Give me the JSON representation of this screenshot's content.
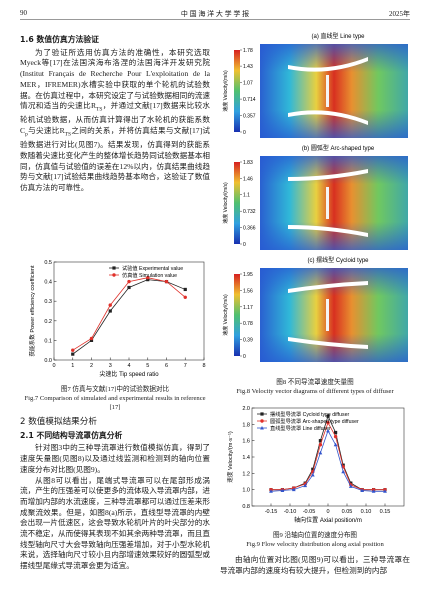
{
  "header": {
    "page": "90",
    "journal": "中 国 海 洋 大 学 学 报",
    "year": "2025年"
  },
  "section_1_6": {
    "heading": "1.6 数值仿真方法验证",
    "paragraphs": [
      [
        "为了验证所选用仿真方法的准确性，本研究选取Myeck等[17]在法国滨海布洛涅的法国海洋开发研究院(Institut Français de Recherche Pour L'exploitation de la MER，IFREMER)水槽实验中获取的单个轮机的试验数据。在仿真过程中，本研究设定了与试验数据相同的流速情况和适当的尖速比R",
        "TS",
        "，并通过文献[17]数据来比较水轮机试验数据，从而仿真计算得出了水轮机的获能系数C",
        "p",
        "与尖速比R",
        "TS",
        "之间的关系，并将仿真结果与文献[17]试验数据进行对比(见图7)。结果发现，仿真得到的获能系数随着尖速比变化产生的整体增长趋势同试验数据基本相同，仿真值与试验值的误差在12%以内，仿真结果曲线趋势与文献[17]试验结果曲线趋势基本吻合，这验证了数值仿真方法的可靠性。"
      ]
    ]
  },
  "section_2": {
    "heading": "2  数值模拟结果分析",
    "subheading": "2.1 不同结构导流罩仿真分析",
    "paragraphs": [
      [
        "针对图3中的三种导流罩进行数值模拟仿真，得到了速度矢量图(见图8)以及通过线监测和检测到的轴向位置速度分布对比图(见图9)。"
      ],
      [
        "从图8可以看出，尾端式导流罩可以在尾部形成涡流，产生的压强差可以使更多的流体吸入导流罩内部，进而增加内部的水流速度，三种导流罩都可以通过压差来形成聚流效果。但是，如图8(a)所示，直线型导流罩的内壁会出现一片低速区，这会导致水轮机叶片的叶尖部分的水流不稳定，从而使得其表现不如其余两种导流罩，而且直线型轴向尺寸大会导致轴向压强差增加，对于小型水轮机来说，选择轴向尺寸较小且内部增速效果较好的圆弧型或摆线型尾缘式导流罩会更为适宜。"
      ]
    ],
    "right_paragraph": [
      "由轴向位置对比图(见图9)可以看出，三种导流罩在导流罩内部的速度均有较大提升，但检测到的内部"
    ]
  },
  "figure8": {
    "colorbar_label": "速度 Velocity/(m/s)",
    "panels": [
      {
        "label": "(a) 直线型 Line type",
        "colorbar_ticks": [
          1.78,
          1.43,
          1.07,
          0.714,
          0.357,
          0
        ]
      },
      {
        "label": "(b) 圆弧型 Arc-shaped type",
        "colorbar_ticks": [
          1.83,
          1.46,
          1.1,
          0.732,
          0.366,
          0
        ]
      },
      {
        "label": "(c) 摆线型 Cycloid type",
        "colorbar_ticks": [
          1.95,
          1.56,
          1.17,
          0.78,
          0.39,
          0
        ]
      }
    ],
    "caption": "图8  不同导流罩速度矢量图",
    "caption_en": "Fig.8  Velocity vector diagrams of different types of diffuser"
  },
  "chart_data": [
    {
      "type": "line",
      "x_label": "尖速比 Tip speed ratio",
      "y_label": "获能系数 Power efficiency coefficient",
      "legend": "upper center",
      "series": [
        {
          "name": "试验值 Experimental value",
          "color": "#222222",
          "marker": "square",
          "x": [
            1,
            2,
            3,
            4,
            5,
            6,
            7
          ],
          "values": [
            0.03,
            0.1,
            0.25,
            0.37,
            0.41,
            0.4,
            0.36
          ]
        },
        {
          "name": "仿真值 Simulation value",
          "color": "#e0302a",
          "marker": "circle",
          "x": [
            1,
            2,
            3,
            4,
            5,
            6,
            7
          ],
          "values": [
            0.05,
            0.11,
            0.28,
            0.4,
            0.42,
            0.4,
            0.32
          ]
        }
      ],
      "xlim": [
        0,
        8
      ],
      "xticks": [
        0,
        1,
        2,
        3,
        4,
        5,
        6,
        7,
        8
      ],
      "ylim": [
        0,
        0.5
      ],
      "yticks": [
        {
          "value": 0,
          "label": "0.0"
        },
        0.1,
        0.2,
        0.3,
        0.4,
        0.5
      ],
      "caption": "图7  仿真与文献[17]中的试验数据对比",
      "caption_en": "Fig.7  Comparison of simulated and experimental results in reference [17]"
    },
    {
      "type": "line",
      "x_label": "轴向位置 Axial position/m",
      "y_label": "速度 Velocity/(m·s⁻¹)",
      "legend": "upper left",
      "series": [
        {
          "name": "摆线型导流罩 Cycloid type diffuser",
          "color": "#222222",
          "marker": "square",
          "x": [
            -0.15,
            -0.12,
            -0.09,
            -0.06,
            -0.04,
            -0.02,
            0,
            0.02,
            0.04,
            0.06,
            0.09,
            0.12,
            0.15
          ],
          "values": [
            1.0,
            1.0,
            1.02,
            1.08,
            1.25,
            1.6,
            1.9,
            1.7,
            1.3,
            1.08,
            1.0,
            1.0,
            1.0
          ]
        },
        {
          "name": "圆弧型导流罩 Arc-shaped type diffuser",
          "color": "#e0302a",
          "marker": "circle",
          "x": [
            -0.15,
            -0.12,
            -0.09,
            -0.06,
            -0.04,
            -0.02,
            0,
            0.02,
            0.04,
            0.06,
            0.09,
            0.12,
            0.15
          ],
          "values": [
            1.0,
            1.0,
            1.02,
            1.07,
            1.22,
            1.55,
            1.82,
            1.65,
            1.28,
            1.06,
            1.0,
            1.0,
            1.0
          ]
        },
        {
          "name": "直线型导流罩 Line diffuser",
          "color": "#3355cc",
          "marker": "triangle",
          "x": [
            -0.15,
            -0.12,
            -0.09,
            -0.06,
            -0.04,
            -0.02,
            0,
            0.02,
            0.04,
            0.06,
            0.09,
            0.12,
            0.15
          ],
          "values": [
            0.98,
            0.99,
            1.0,
            1.05,
            1.18,
            1.45,
            1.72,
            1.55,
            1.22,
            1.04,
            0.99,
            0.98,
            0.98
          ]
        }
      ],
      "xlim": [
        -0.2,
        0.2
      ],
      "xticks": [
        -0.15,
        {
          "value": -0.1,
          "label": "-0.10"
        },
        -0.05,
        0,
        0.05,
        {
          "value": 0.1,
          "label": "0.10"
        },
        0.15
      ],
      "ylim": [
        0.8,
        2.0
      ],
      "yticks": [
        0.8,
        {
          "value": 1,
          "label": "1.0"
        },
        1.2,
        1.4,
        1.6,
        1.8,
        {
          "value": 2,
          "label": "2.0"
        }
      ],
      "caption": "图9  沿轴向位置的速度分布图",
      "caption_en": "Fig.9  Flow velocity distribution along axial position"
    }
  ]
}
